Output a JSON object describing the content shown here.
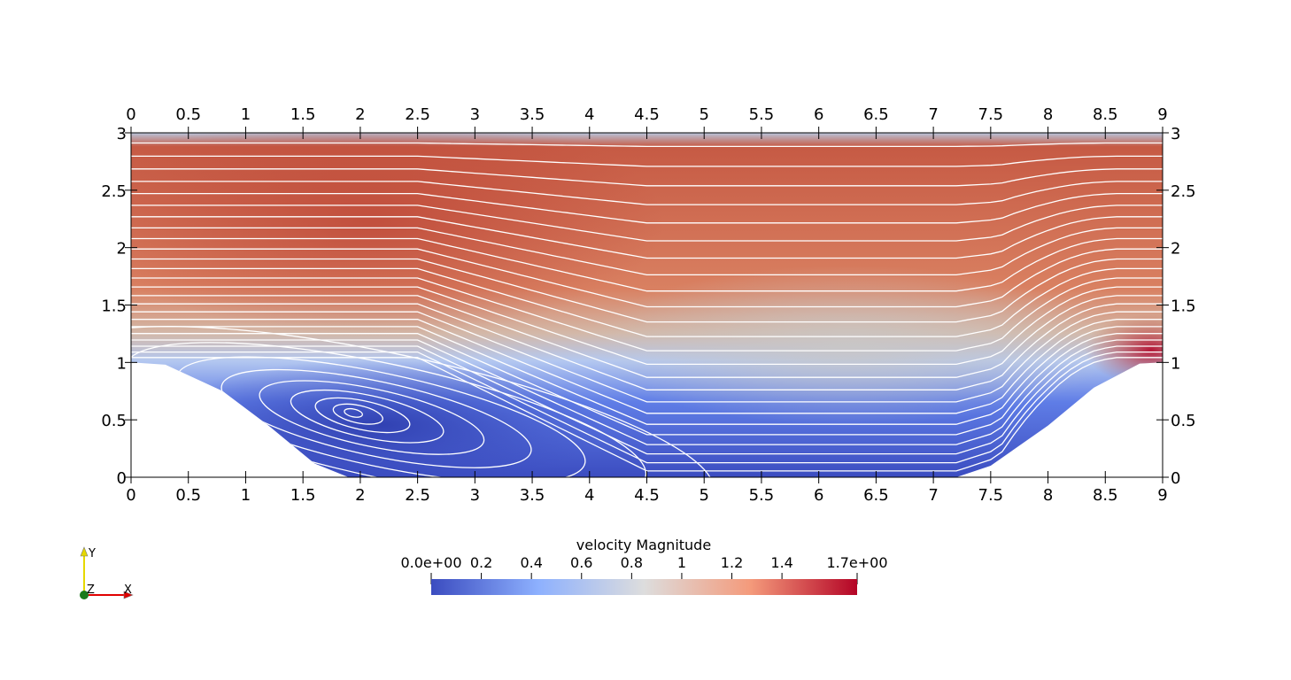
{
  "chart_data": {
    "type": "heatmap",
    "x_range": [
      0,
      9
    ],
    "y_range": [
      0,
      3
    ],
    "x_ticks": [
      "0",
      "0.5",
      "1",
      "1.5",
      "2",
      "2.5",
      "3",
      "3.5",
      "4",
      "4.5",
      "5",
      "5.5",
      "6",
      "6.5",
      "7",
      "7.5",
      "8",
      "8.5",
      "9"
    ],
    "y_ticks": [
      "0",
      "0.5",
      "1",
      "1.5",
      "2",
      "2.5",
      "3"
    ],
    "field": "velocity Magnitude",
    "range": [
      0.0,
      1.7
    ],
    "colorbar": {
      "title": "velocity Magnitude",
      "labels": [
        "0.0e+00",
        "0.2",
        "0.4",
        "0.6",
        "0.8",
        "1",
        "1.2",
        "1.4",
        "1.7e+00"
      ],
      "colors": [
        "#3b4cc0",
        "#8db0fe",
        "#dddddd",
        "#f49a7b",
        "#b40426"
      ]
    },
    "bottom_wall": [
      [
        0,
        1.0
      ],
      [
        0.3,
        0.98
      ],
      [
        0.8,
        0.75
      ],
      [
        1.2,
        0.45
      ],
      [
        1.6,
        0.12
      ],
      [
        1.9,
        0.0
      ],
      [
        7.2,
        0.0
      ],
      [
        7.5,
        0.1
      ],
      [
        8.0,
        0.45
      ],
      [
        8.4,
        0.78
      ],
      [
        8.8,
        0.99
      ],
      [
        9,
        1.0
      ]
    ],
    "streamlines": "white",
    "vortex_center": [
      1.9,
      0.57
    ],
    "orientation_axes": {
      "y": "Y",
      "z": "Z",
      "x": "X"
    }
  }
}
